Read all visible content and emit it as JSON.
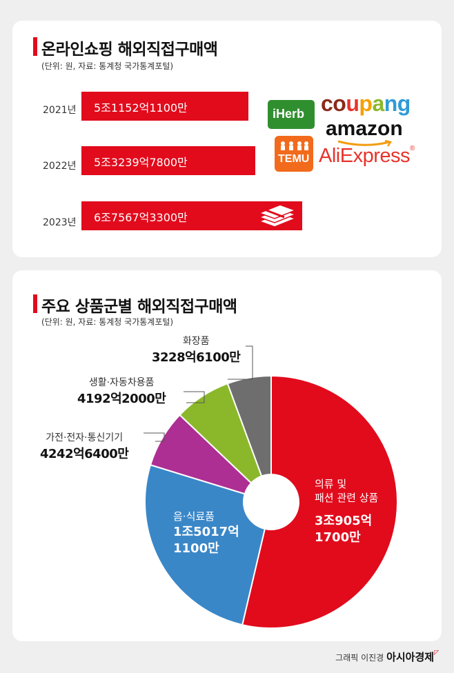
{
  "card1": {
    "title": "온라인쇼핑 해외직접구매액",
    "subtitle": "(단위: 원, 자료: 통계청 국가통계포털)"
  },
  "card2": {
    "title": "주요 상품군별 해외직접구매액",
    "subtitle": "(단위: 원, 자료: 통계청 국가통계포털)"
  },
  "logos": {
    "iherb": "iHerb",
    "coupang": "coupang",
    "amazon": "amazon",
    "temu": "TEMU",
    "aliexpress": "AliExpress"
  },
  "credit": {
    "text": "그래픽 이진경",
    "brand": "아시아경제"
  },
  "chart_data": [
    {
      "type": "bar",
      "orientation": "horizontal",
      "categories": [
        "2021년",
        "2022년",
        "2023년"
      ],
      "values": [
        51152.11,
        53239.78,
        67567.33
      ],
      "value_labels": [
        "5조1152억1100만",
        "5조3239억7800만",
        "6조7567억3300만"
      ],
      "title": "온라인쇼핑 해외직접구매액",
      "colors": [
        "#e10b1c"
      ]
    },
    {
      "type": "pie",
      "donut": true,
      "title": "주요 상품군별 해외직접구매액",
      "slices": [
        {
          "name": "의류 및 패션 관련 상품",
          "value": 30905.17,
          "label": "3조905억 1700만",
          "color": "#e10b1c"
        },
        {
          "name": "음·식료품",
          "value": 15017.11,
          "label": "1조5017억 1100만",
          "color": "#3a87c8"
        },
        {
          "name": "가전·전자·통신기기",
          "value": 4242.64,
          "label": "4242억6400만",
          "color": "#ad2f93"
        },
        {
          "name": "생활·자동차용품",
          "value": 4192.2,
          "label": "4192억2000만",
          "color": "#8bb82a"
        },
        {
          "name": "화장품",
          "value": 3228.61,
          "label": "3228억6100만",
          "color": "#6e6e6e"
        }
      ]
    }
  ]
}
